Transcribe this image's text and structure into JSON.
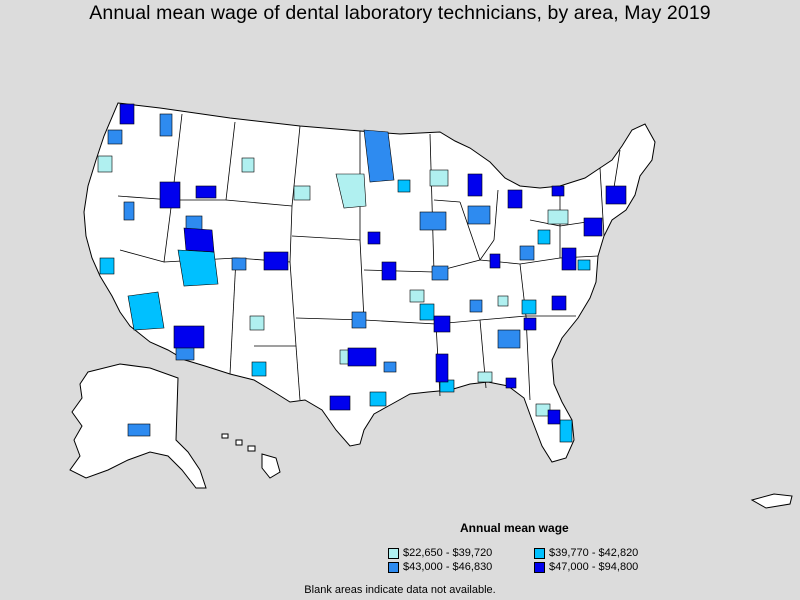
{
  "title": "Annual mean wage of dental laboratory technicians, by area, May 2019",
  "legend": {
    "title": "Annual mean wage",
    "items": [
      {
        "label": "$22,650 - $39,720",
        "color": "#b0f0f0"
      },
      {
        "label": "$39,770 - $42,820",
        "color": "#00c0ff"
      },
      {
        "label": "$43,000 - $46,830",
        "color": "#2e8bf0"
      },
      {
        "label": "$47,000 - $94,800",
        "color": "#0000ee"
      }
    ]
  },
  "footnote": "Blank areas indicate data not available.",
  "colors": {
    "background": "#dcdcdc",
    "no_data": "#ffffff",
    "border": "#000000"
  }
}
